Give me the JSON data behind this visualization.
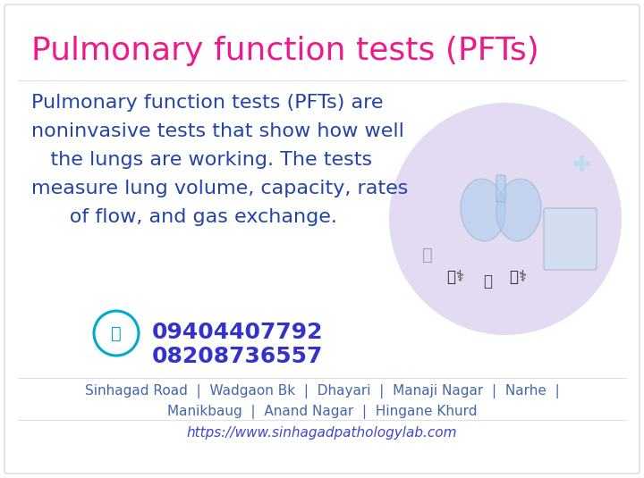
{
  "title": "Pulmonary function tests (PFTs)",
  "title_color": "#EE1A8A",
  "title_fontsize": 26,
  "body_text_lines": [
    "Pulmonary function tests (PFTs) are",
    "noninvasive tests that show how well",
    "   the lungs are working. The tests",
    "measure lung volume, capacity, rates",
    "      of flow, and gas exchange."
  ],
  "body_color": "#2244AA",
  "body_fontsize": 16,
  "phone1": "09404407792",
  "phone2": "08208736557",
  "phone_color": "#3333CC",
  "phone_fontsize": 18,
  "phone_icon_color": "#00AACC",
  "address_line1": "Sinhagad Road  |  Wadgaon Bk  |  Dhayari  |  Manaji Nagar  |  Narhe  |",
  "address_line2": "Manikbaug  |  Anand Nagar  |  Hingane Khurd",
  "address_color": "#4466AA",
  "address_fontsize": 11,
  "website": "https://www.sinhagadpathologylab.com",
  "website_color": "#4444CC",
  "website_fontsize": 11,
  "bg_color": "#FFFFFF",
  "border_color": "#E0E0E0",
  "illus_bg_color": "#EDE8F8",
  "illus_circle_color": "#DDD5F0",
  "separator_color": "#E0E0E0"
}
